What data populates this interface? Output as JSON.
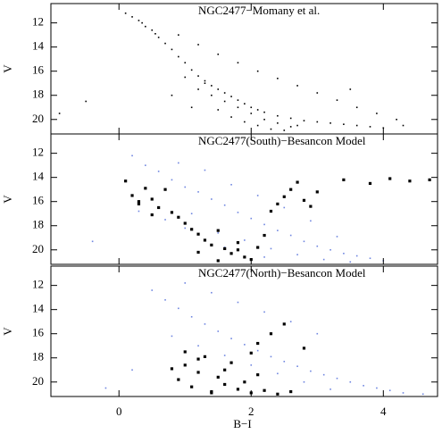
{
  "chart_data": [
    {
      "type": "scatter",
      "title": "NGC2477−Momany et al.",
      "ylabel": "V",
      "xlim": [
        -1.03,
        4.82
      ],
      "ylim": [
        21.2,
        10.4
      ],
      "xticks": [
        0,
        2,
        4
      ],
      "yticks": [
        12,
        14,
        16,
        18,
        20
      ],
      "series": [
        {
          "color": "#000000",
          "x": [
            0.1,
            0.2,
            0.3,
            0.35,
            0.4,
            0.5,
            0.55,
            0.6,
            0.7,
            0.8,
            0.9,
            1.0,
            1.1,
            1.2,
            1.3,
            1.4,
            1.5,
            1.6,
            1.7,
            1.8,
            1.9,
            2.0,
            2.1,
            2.2,
            2.4,
            2.6,
            2.8,
            3.0,
            3.2,
            3.4,
            3.6,
            3.8,
            4.0,
            1.2,
            1.4,
            1.6,
            1.8,
            2.0,
            2.2,
            2.4,
            2.6,
            1.0,
            1.3,
            1.5,
            1.7,
            1.9,
            2.1,
            2.3,
            2.5,
            2.7,
            -0.5,
            -0.9,
            3.5,
            4.3,
            0.8,
            1.1,
            0.9,
            1.2,
            1.5,
            1.8,
            2.1,
            2.4,
            2.7,
            3.0,
            3.3,
            3.6,
            3.9,
            4.2
          ],
          "values": [
            11.2,
            11.5,
            11.8,
            12.0,
            12.3,
            12.6,
            12.9,
            13.2,
            13.7,
            14.2,
            14.8,
            15.3,
            15.9,
            16.4,
            16.8,
            17.2,
            17.5,
            17.8,
            18.1,
            18.4,
            18.7,
            19.0,
            19.2,
            19.4,
            19.7,
            19.9,
            20.1,
            20.2,
            20.3,
            20.4,
            20.5,
            20.6,
            20.7,
            17.5,
            18.0,
            18.5,
            19.0,
            19.5,
            20.0,
            20.3,
            20.6,
            16.5,
            17.0,
            19.2,
            19.8,
            20.2,
            20.5,
            20.8,
            20.9,
            20.5,
            18.5,
            19.5,
            17.5,
            20.5,
            18.0,
            19.0,
            13.0,
            13.8,
            14.6,
            15.3,
            16.0,
            16.6,
            17.2,
            17.8,
            18.4,
            19.0,
            19.5,
            20.0
          ]
        }
      ]
    },
    {
      "type": "scatter",
      "title": "NGC2477(South)−Besancon Model",
      "ylabel": "V",
      "xlim": [
        -1.03,
        4.82
      ],
      "ylim": [
        21.2,
        10.4
      ],
      "xticks": [
        0,
        2,
        4
      ],
      "yticks": [
        12,
        14,
        16,
        18,
        20
      ],
      "series": [
        {
          "color": "#6f86e0",
          "x": [
            0.2,
            0.4,
            0.6,
            0.8,
            1.0,
            1.2,
            1.4,
            1.6,
            1.8,
            2.0,
            2.2,
            2.4,
            2.6,
            2.8,
            3.0,
            3.2,
            3.4,
            3.6,
            3.8,
            4.0,
            0.3,
            0.7,
            1.1,
            1.5,
            1.9,
            2.3,
            2.7,
            3.1,
            3.5,
            0.9,
            1.3,
            1.7,
            2.1,
            2.5,
            2.9,
            3.3,
            1.0,
            1.6,
            2.2,
            -0.4
          ],
          "values": [
            12.2,
            13.0,
            13.5,
            14.2,
            14.8,
            15.2,
            15.8,
            16.3,
            16.9,
            17.4,
            17.9,
            18.4,
            18.8,
            19.3,
            19.7,
            20.0,
            20.3,
            20.5,
            20.7,
            20.9,
            16.8,
            17.5,
            17.0,
            18.6,
            19.2,
            19.9,
            20.4,
            20.8,
            21.0,
            12.8,
            13.4,
            14.6,
            15.5,
            16.5,
            17.6,
            18.9,
            18.2,
            19.8,
            20.6,
            19.3
          ]
        },
        {
          "color": "#000000",
          "x": [
            0.1,
            0.2,
            0.3,
            0.4,
            0.5,
            0.6,
            0.7,
            0.8,
            0.3,
            0.5,
            0.9,
            1.0,
            1.1,
            1.2,
            1.3,
            1.4,
            1.5,
            1.6,
            1.7,
            1.8,
            1.9,
            2.0,
            1.2,
            1.5,
            1.8,
            2.1,
            2.3,
            2.4,
            2.5,
            2.6,
            2.7,
            2.8,
            2.9,
            3.0,
            3.4,
            3.8,
            4.1,
            4.4,
            4.7,
            2.2
          ],
          "values": [
            14.3,
            15.5,
            16.2,
            14.9,
            15.8,
            16.5,
            15.0,
            16.9,
            16.0,
            17.1,
            17.3,
            17.8,
            18.3,
            18.7,
            19.2,
            19.6,
            18.4,
            19.9,
            20.3,
            20.0,
            20.6,
            20.8,
            20.2,
            20.9,
            19.4,
            19.8,
            16.8,
            16.2,
            15.6,
            15.0,
            14.4,
            15.9,
            16.4,
            15.2,
            14.2,
            14.5,
            14.1,
            14.3,
            14.2,
            18.8
          ]
        }
      ]
    },
    {
      "type": "scatter",
      "title": "NGC2477(North)−Besancon Model",
      "ylabel": "V",
      "xlabel": "B−I",
      "xlim": [
        -1.03,
        4.82
      ],
      "ylim": [
        21.2,
        10.4
      ],
      "xticks": [
        0,
        2,
        4
      ],
      "yticks": [
        12,
        14,
        16,
        18,
        20
      ],
      "series": [
        {
          "color": "#6f86e0",
          "x": [
            0.5,
            0.7,
            0.9,
            1.1,
            1.3,
            1.5,
            1.7,
            1.9,
            2.1,
            2.3,
            2.5,
            2.7,
            2.9,
            3.1,
            3.3,
            3.5,
            3.7,
            3.9,
            4.1,
            4.3,
            0.8,
            1.2,
            1.6,
            2.0,
            2.4,
            2.8,
            3.2,
            1.0,
            1.4,
            1.8,
            2.2,
            2.6,
            3.0,
            0.2,
            -0.2,
            4.6
          ],
          "values": [
            12.4,
            13.2,
            13.9,
            14.6,
            15.2,
            15.8,
            16.4,
            16.9,
            17.4,
            17.9,
            18.3,
            18.7,
            19.1,
            19.4,
            19.7,
            20.0,
            20.3,
            20.5,
            20.7,
            20.9,
            16.2,
            17.0,
            17.8,
            18.6,
            19.3,
            20.0,
            20.6,
            11.8,
            12.6,
            13.4,
            14.2,
            15.0,
            16.0,
            19.0,
            20.5,
            21.0
          ]
        },
        {
          "color": "#000000",
          "x": [
            0.9,
            1.0,
            1.1,
            1.2,
            1.3,
            1.4,
            1.5,
            1.6,
            1.7,
            1.8,
            1.9,
            2.0,
            2.1,
            2.2,
            2.4,
            2.6,
            1.0,
            1.2,
            1.4,
            0.8,
            2.1,
            2.3,
            2.5,
            2.0,
            2.8,
            1.6
          ],
          "values": [
            19.8,
            18.6,
            20.4,
            19.2,
            17.9,
            20.8,
            19.6,
            20.2,
            18.4,
            20.6,
            20.0,
            20.9,
            19.4,
            20.7,
            21.0,
            20.8,
            17.5,
            18.1,
            20.9,
            18.9,
            16.8,
            16.0,
            15.2,
            17.6,
            17.2,
            19.0
          ]
        }
      ]
    }
  ]
}
